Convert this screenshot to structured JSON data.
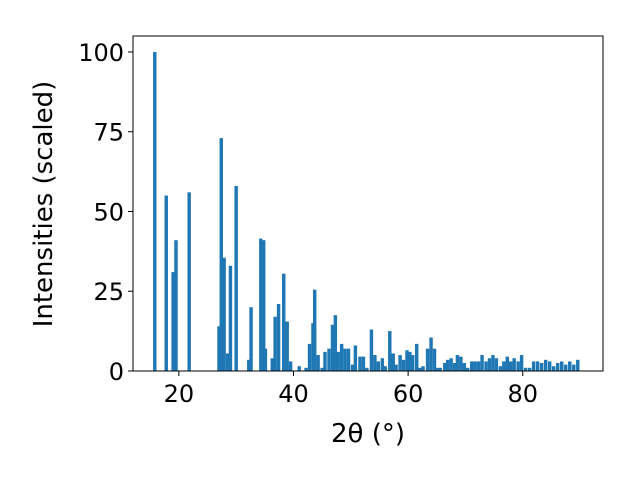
{
  "chart_data": {
    "type": "bar",
    "xlabel": "2θ (°)",
    "ylabel": "Intensities (scaled)",
    "xlim": [
      12,
      94
    ],
    "ylim": [
      0,
      105
    ],
    "xticks": [
      20,
      40,
      60,
      80
    ],
    "yticks": [
      0,
      25,
      50,
      75,
      100
    ],
    "bar_color": "#1f77b4",
    "bar_width_units": 0.6,
    "grid": false,
    "legend": "none",
    "series": [
      {
        "x": [
          15.8,
          17.8,
          19.0,
          19.5,
          21.8,
          27.0,
          27.4,
          27.9,
          28.5,
          29.0,
          30.0,
          32.2,
          32.6,
          34.3,
          34.8,
          35.1,
          36.3,
          36.8,
          37.4,
          38.3,
          38.9,
          39.5,
          41.0,
          42.2,
          42.8,
          43.4,
          43.7,
          44.3,
          45.0,
          45.5,
          46.2,
          46.8,
          47.3,
          47.8,
          48.4,
          49.0,
          49.6,
          50.3,
          50.8,
          51.6,
          52.2,
          52.8,
          53.6,
          54.2,
          54.8,
          55.5,
          56.0,
          56.8,
          57.4,
          57.9,
          58.6,
          59.2,
          59.8,
          60.3,
          60.8,
          61.5,
          62.1,
          62.6,
          63.4,
          64.0,
          64.6,
          65.1,
          65.6,
          66.4,
          66.9,
          67.5,
          68.1,
          68.6,
          69.2,
          69.8,
          70.4,
          71.1,
          71.7,
          72.3,
          72.9,
          73.6,
          74.2,
          74.8,
          75.4,
          76.1,
          76.7,
          77.3,
          77.9,
          78.5,
          79.2,
          79.8,
          80.5,
          81.2,
          81.9,
          82.6,
          83.3,
          84.0,
          84.7,
          85.4,
          86.1,
          86.8,
          87.5,
          88.2,
          88.9,
          89.6
        ],
        "values": [
          100,
          55,
          31,
          41,
          56,
          14,
          73,
          35.5,
          5.5,
          33,
          58,
          3.5,
          20,
          41.5,
          41,
          7,
          4,
          17,
          21,
          30.5,
          15.5,
          3,
          1.5,
          1,
          8.5,
          15,
          25.5,
          5,
          1,
          6,
          7,
          14.5,
          17.5,
          6,
          8.5,
          7,
          7,
          2,
          8,
          4.5,
          4.5,
          1,
          13,
          5,
          3,
          4,
          1.5,
          12.5,
          5.5,
          2,
          5,
          3.5,
          6.5,
          6,
          5,
          8.5,
          1,
          1.5,
          7,
          10.5,
          7,
          1,
          1,
          2.5,
          3.5,
          4,
          2.5,
          5,
          4.5,
          2.5,
          1,
          3,
          3,
          3,
          5,
          3,
          4,
          5,
          4,
          1.5,
          3,
          4.5,
          3,
          4,
          3,
          5,
          1,
          1,
          3,
          3,
          2.5,
          3.5,
          3,
          1.5,
          2.5,
          3,
          2,
          3,
          2,
          3.5
        ]
      }
    ]
  }
}
